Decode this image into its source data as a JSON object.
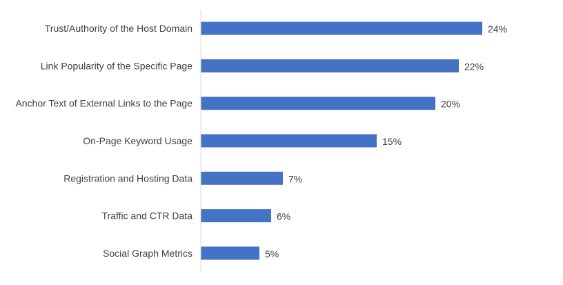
{
  "chart_data": {
    "type": "bar",
    "orientation": "horizontal",
    "title": "",
    "xlabel": "",
    "ylabel": "",
    "categories": [
      "Trust/Authority of the Host Domain",
      "Link Popularity of the Specific Page",
      "Anchor Text of External Links to the Page",
      "On-Page Keyword Usage",
      "Registration and Hosting Data",
      "Traffic and CTR Data",
      "Social Graph Metrics"
    ],
    "values": [
      24,
      22,
      20,
      15,
      7,
      6,
      5
    ],
    "value_labels": [
      "24%",
      "22%",
      "20%",
      "15%",
      "7%",
      "6%",
      "5%"
    ],
    "unit": "%",
    "xlim": [
      0,
      24
    ],
    "grid": false,
    "legend": "none",
    "colors": {
      "bar": "#4472C4",
      "axis": "#D9D9D9",
      "text": "#404040"
    }
  }
}
